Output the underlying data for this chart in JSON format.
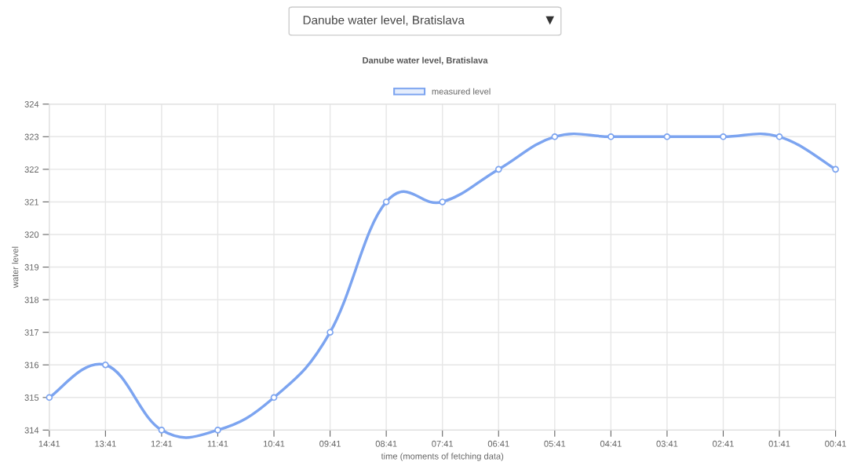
{
  "chart_data": {
    "type": "line",
    "title": "Danube water level, Bratislava",
    "xlabel": "time (moments of fetching data)",
    "ylabel": "water level",
    "annotations": [
      "Danube water level, Bratislava"
    ],
    "categories": [
      "14:41",
      "13:41",
      "12:41",
      "11:41",
      "10:41",
      "09:41",
      "08:41",
      "07:41",
      "06:41",
      "05:41",
      "04:41",
      "03:41",
      "02:41",
      "01:41",
      "00:41"
    ],
    "series": [
      {
        "name": "measured level",
        "color": "#7ca4f0",
        "values": [
          315,
          316,
          314,
          314,
          315,
          317,
          321,
          321,
          322,
          323,
          323,
          323,
          323,
          323,
          322
        ]
      }
    ],
    "ylim": [
      314,
      324
    ],
    "yticks": [
      314,
      315,
      316,
      317,
      318,
      319,
      320,
      321,
      322,
      323,
      324
    ],
    "grid": true,
    "legend": "top",
    "marker": "circle",
    "line_style": "solid"
  }
}
